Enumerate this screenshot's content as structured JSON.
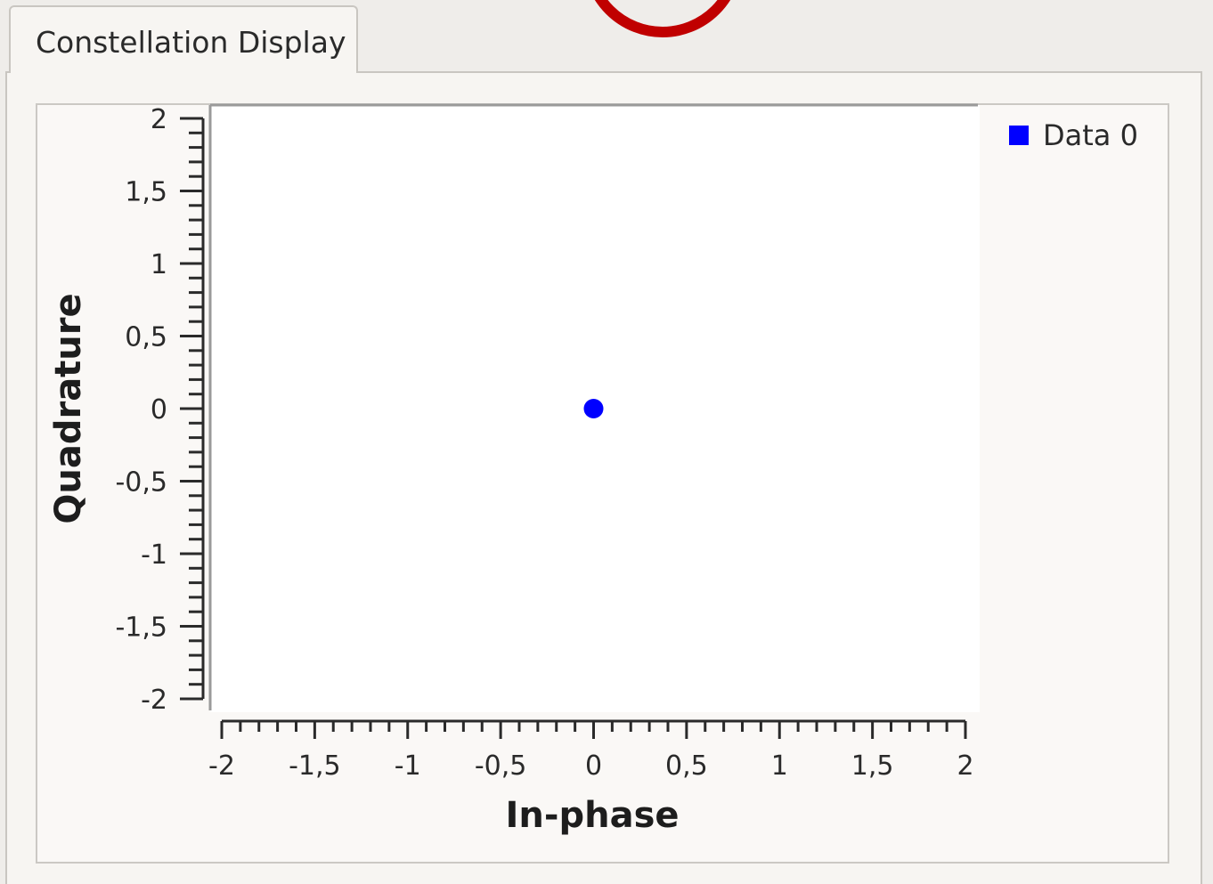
{
  "tab": {
    "label": "Constellation Display"
  },
  "chart_data": {
    "type": "scatter",
    "title": "",
    "xlabel": "In-phase",
    "ylabel": "Quadrature",
    "xlim": [
      -2,
      2
    ],
    "ylim": [
      -2,
      2
    ],
    "x_ticks": [
      "-2",
      "-1,5",
      "-1",
      "-0,5",
      "0",
      "0,5",
      "1",
      "1,5",
      "2"
    ],
    "y_ticks": [
      "2",
      "1,5",
      "1",
      "0,5",
      "0",
      "-0,5",
      "-1",
      "-1,5",
      "-2"
    ],
    "grid": false,
    "legend_position": "right",
    "series": [
      {
        "name": "Data 0",
        "color": "#0000ff",
        "points": [
          {
            "x": 0,
            "y": 0
          }
        ]
      }
    ]
  },
  "overlay": {
    "color": "#c00000"
  }
}
